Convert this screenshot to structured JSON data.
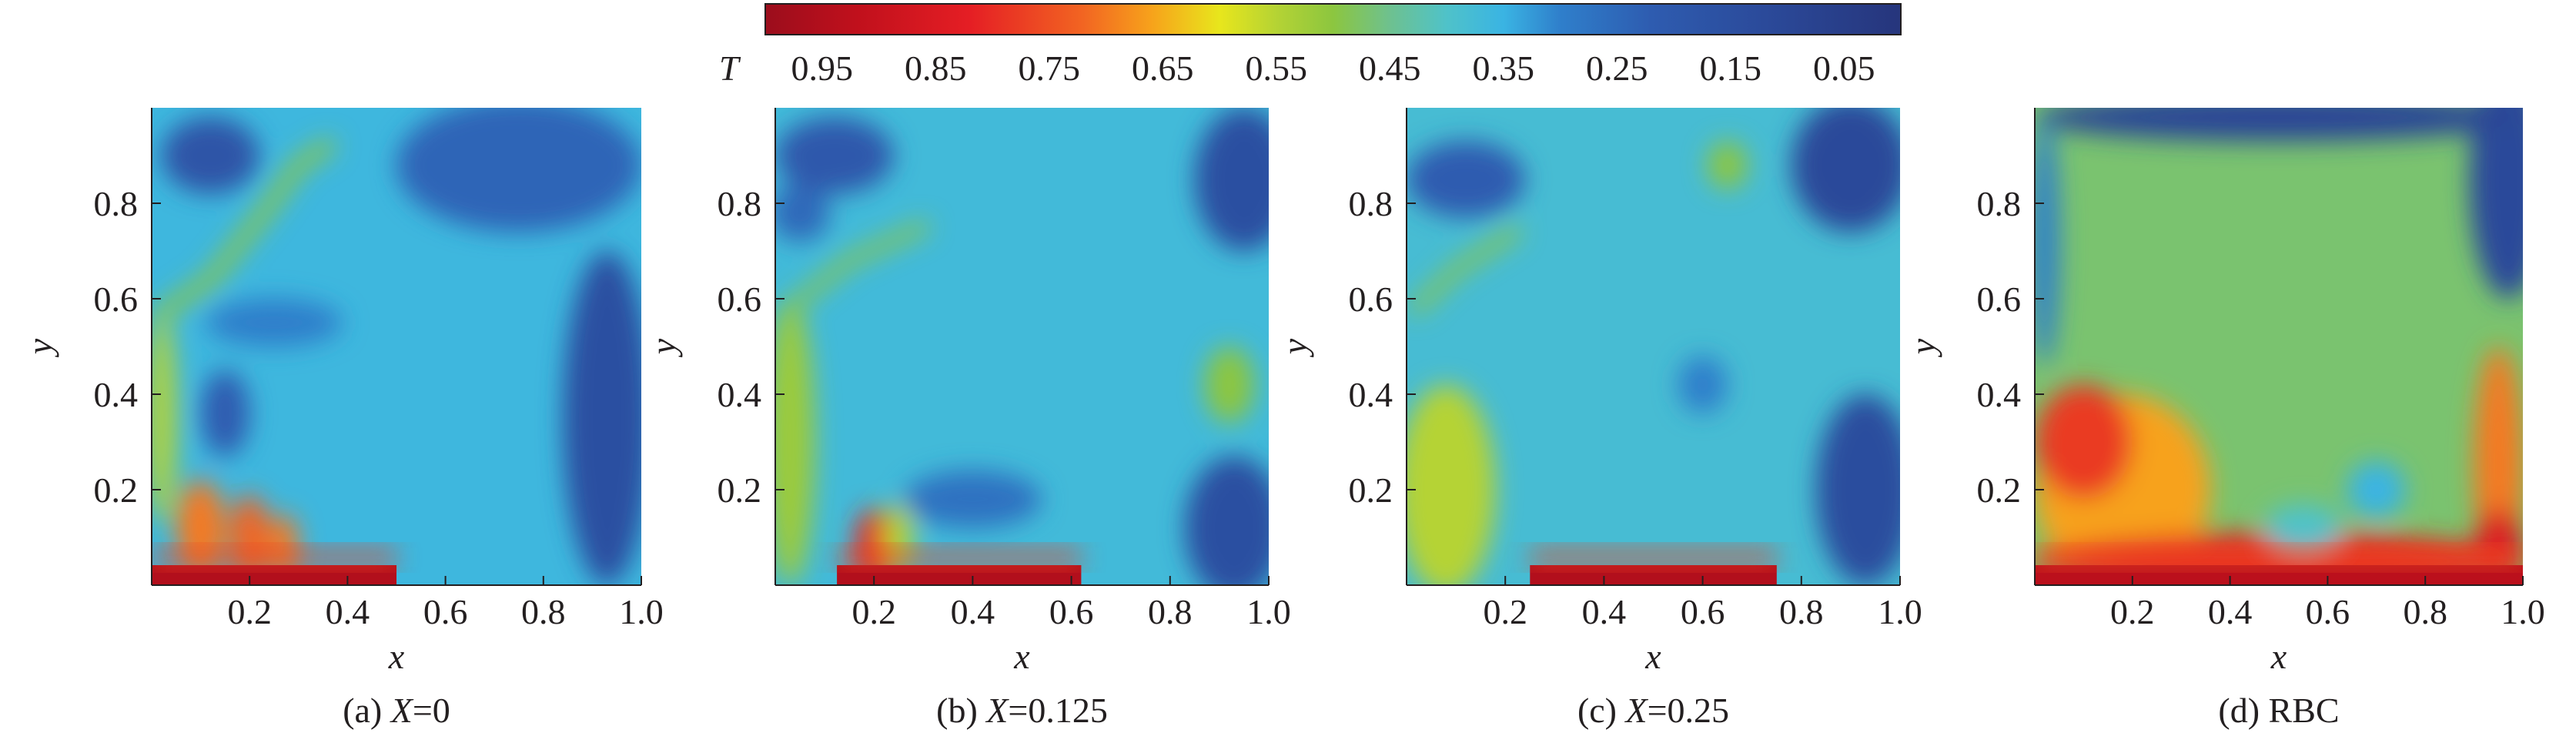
{
  "colorbar": {
    "symbol": "T",
    "ticks": [
      "0.95",
      "0.85",
      "0.75",
      "0.65",
      "0.55",
      "0.45",
      "0.35",
      "0.25",
      "0.15",
      "0.05"
    ],
    "range": [
      0.0,
      1.0
    ],
    "orientation": "decreasing-left-to-right",
    "stops": [
      {
        "t": 1.0,
        "color": "#9b0d1c"
      },
      {
        "t": 0.92,
        "color": "#c0101c"
      },
      {
        "t": 0.82,
        "color": "#e51e24"
      },
      {
        "t": 0.72,
        "color": "#f26522"
      },
      {
        "t": 0.66,
        "color": "#f7a21b"
      },
      {
        "t": 0.6,
        "color": "#e8e61c"
      },
      {
        "t": 0.55,
        "color": "#b5d334"
      },
      {
        "t": 0.5,
        "color": "#8cc63f"
      },
      {
        "t": 0.45,
        "color": "#6ec18f"
      },
      {
        "t": 0.4,
        "color": "#4fc2c9"
      },
      {
        "t": 0.35,
        "color": "#3ab4e3"
      },
      {
        "t": 0.3,
        "color": "#2f7fcb"
      },
      {
        "t": 0.22,
        "color": "#2e5cb0"
      },
      {
        "t": 0.12,
        "color": "#2b4a9a"
      },
      {
        "t": 0.0,
        "color": "#26357c"
      }
    ]
  },
  "chart_data": [
    {
      "type": "heatmap",
      "caption_prefix": "(a) ",
      "caption_var": "X",
      "caption_value": "=0",
      "xlabel": "x",
      "ylabel": "y",
      "xticks": [
        "0.2",
        "0.4",
        "0.6",
        "0.8",
        "1.0"
      ],
      "yticks": [
        "0.2",
        "0.4",
        "0.6",
        "0.8"
      ],
      "xlim": [
        0,
        1
      ],
      "ylim": [
        0,
        1
      ],
      "background_T": 0.36,
      "hot_segment": {
        "x": [
          0.0,
          0.5
        ],
        "y": 0.0,
        "T": 0.95
      },
      "features": [
        {
          "kind": "ellipse",
          "cx": 0.15,
          "cy": 0.36,
          "rx": 0.05,
          "ry": 0.09,
          "T": 0.22
        },
        {
          "kind": "ellipse",
          "cx": 0.25,
          "cy": 0.55,
          "rx": 0.14,
          "ry": 0.05,
          "T": 0.3
        },
        {
          "kind": "ellipse",
          "cx": 0.75,
          "cy": 0.88,
          "rx": 0.25,
          "ry": 0.14,
          "T": 0.24
        },
        {
          "kind": "ellipse",
          "cx": 0.93,
          "cy": 0.35,
          "rx": 0.09,
          "ry": 0.35,
          "T": 0.15
        },
        {
          "kind": "ellipse",
          "cx": 0.12,
          "cy": 0.9,
          "rx": 0.1,
          "ry": 0.08,
          "T": 0.18
        },
        {
          "kind": "path",
          "points": [
            [
              0.02,
              0.57
            ],
            [
              0.12,
              0.64
            ],
            [
              0.23,
              0.78
            ],
            [
              0.3,
              0.88
            ],
            [
              0.36,
              0.92
            ]
          ],
          "width": 0.03,
          "T": 0.5
        },
        {
          "kind": "ellipse",
          "cx": 0.02,
          "cy": 0.35,
          "rx": 0.03,
          "ry": 0.22,
          "T": 0.55
        },
        {
          "kind": "ellipse",
          "cx": 0.1,
          "cy": 0.12,
          "rx": 0.05,
          "ry": 0.1,
          "T": 0.7
        },
        {
          "kind": "ellipse",
          "cx": 0.2,
          "cy": 0.1,
          "rx": 0.04,
          "ry": 0.09,
          "T": 0.72
        },
        {
          "kind": "ellipse",
          "cx": 0.27,
          "cy": 0.08,
          "rx": 0.03,
          "ry": 0.07,
          "T": 0.7
        }
      ]
    },
    {
      "type": "heatmap",
      "caption_prefix": "(b) ",
      "caption_var": "X",
      "caption_value": "=0.125",
      "xlabel": "x",
      "ylabel": "y",
      "xticks": [
        "0.2",
        "0.4",
        "0.6",
        "0.8",
        "1.0"
      ],
      "yticks": [
        "0.2",
        "0.4",
        "0.6",
        "0.8"
      ],
      "xlim": [
        0,
        1
      ],
      "ylim": [
        0,
        1
      ],
      "background_T": 0.37,
      "hot_segment": {
        "x": [
          0.125,
          0.62
        ],
        "y": 0.0,
        "T": 0.95
      },
      "features": [
        {
          "kind": "ellipse",
          "cx": 0.05,
          "cy": 0.78,
          "rx": 0.06,
          "ry": 0.06,
          "T": 0.25
        },
        {
          "kind": "ellipse",
          "cx": 0.12,
          "cy": 0.9,
          "rx": 0.12,
          "ry": 0.08,
          "T": 0.2
        },
        {
          "kind": "ellipse",
          "cx": 0.95,
          "cy": 0.85,
          "rx": 0.1,
          "ry": 0.15,
          "T": 0.15
        },
        {
          "kind": "ellipse",
          "cx": 0.93,
          "cy": 0.12,
          "rx": 0.1,
          "ry": 0.15,
          "T": 0.15
        },
        {
          "kind": "ellipse",
          "cx": 0.4,
          "cy": 0.18,
          "rx": 0.14,
          "ry": 0.06,
          "T": 0.27
        },
        {
          "kind": "ellipse",
          "cx": 0.92,
          "cy": 0.42,
          "rx": 0.05,
          "ry": 0.08,
          "T": 0.5
        },
        {
          "kind": "ellipse",
          "cx": 0.03,
          "cy": 0.3,
          "rx": 0.05,
          "ry": 0.3,
          "T": 0.52
        },
        {
          "kind": "path",
          "points": [
            [
              0.03,
              0.58
            ],
            [
              0.15,
              0.68
            ],
            [
              0.3,
              0.75
            ]
          ],
          "width": 0.025,
          "T": 0.5
        },
        {
          "kind": "ellipse",
          "cx": 0.2,
          "cy": 0.08,
          "rx": 0.04,
          "ry": 0.08,
          "T": 0.8
        },
        {
          "kind": "ellipse",
          "cx": 0.25,
          "cy": 0.1,
          "rx": 0.03,
          "ry": 0.07,
          "T": 0.55
        }
      ]
    },
    {
      "type": "heatmap",
      "caption_prefix": "(c) ",
      "caption_var": "X",
      "caption_value": "=0.25",
      "xlabel": "x",
      "ylabel": "y",
      "xticks": [
        "0.2",
        "0.4",
        "0.6",
        "0.8",
        "1.0"
      ],
      "yticks": [
        "0.2",
        "0.4",
        "0.6",
        "0.8"
      ],
      "xlim": [
        0,
        1
      ],
      "ylim": [
        0,
        1
      ],
      "background_T": 0.38,
      "hot_segment": {
        "x": [
          0.25,
          0.75
        ],
        "y": 0.0,
        "T": 0.95
      },
      "features": [
        {
          "kind": "ellipse",
          "cx": 0.9,
          "cy": 0.88,
          "rx": 0.12,
          "ry": 0.14,
          "T": 0.12
        },
        {
          "kind": "ellipse",
          "cx": 0.93,
          "cy": 0.2,
          "rx": 0.1,
          "ry": 0.2,
          "T": 0.14
        },
        {
          "kind": "ellipse",
          "cx": 0.12,
          "cy": 0.85,
          "rx": 0.12,
          "ry": 0.08,
          "T": 0.22
        },
        {
          "kind": "ellipse",
          "cx": 0.08,
          "cy": 0.2,
          "rx": 0.1,
          "ry": 0.22,
          "T": 0.55
        },
        {
          "kind": "path",
          "points": [
            [
              0.02,
              0.58
            ],
            [
              0.1,
              0.66
            ],
            [
              0.22,
              0.74
            ]
          ],
          "width": 0.025,
          "T": 0.5
        },
        {
          "kind": "ellipse",
          "cx": 0.6,
          "cy": 0.42,
          "rx": 0.05,
          "ry": 0.06,
          "T": 0.3
        },
        {
          "kind": "ellipse",
          "cx": 0.65,
          "cy": 0.88,
          "rx": 0.04,
          "ry": 0.05,
          "T": 0.5
        }
      ]
    },
    {
      "type": "heatmap",
      "caption_prefix": "(d) ",
      "caption_var": "",
      "caption_value": "RBC",
      "xlabel": "x",
      "ylabel": "y",
      "xticks": [
        "0.2",
        "0.4",
        "0.6",
        "0.8",
        "1.0"
      ],
      "yticks": [
        "0.2",
        "0.4",
        "0.6",
        "0.8"
      ],
      "xlim": [
        0,
        1
      ],
      "ylim": [
        0,
        1
      ],
      "background_T": 0.47,
      "hot_segment": {
        "x": [
          0.0,
          1.0
        ],
        "y": 0.0,
        "T": 0.93
      },
      "features": [
        {
          "kind": "ellipse",
          "cx": 0.97,
          "cy": 0.85,
          "rx": 0.08,
          "ry": 0.25,
          "T": 0.12
        },
        {
          "kind": "ellipse",
          "cx": 0.5,
          "cy": 0.98,
          "rx": 0.5,
          "ry": 0.05,
          "T": 0.1
        },
        {
          "kind": "ellipse",
          "cx": 0.02,
          "cy": 0.72,
          "rx": 0.03,
          "ry": 0.26,
          "T": 0.3
        },
        {
          "kind": "ellipse",
          "cx": 0.18,
          "cy": 0.2,
          "rx": 0.18,
          "ry": 0.2,
          "T": 0.66
        },
        {
          "kind": "ellipse",
          "cx": 0.1,
          "cy": 0.3,
          "rx": 0.1,
          "ry": 0.12,
          "T": 0.78
        },
        {
          "kind": "ellipse",
          "cx": 0.95,
          "cy": 0.25,
          "rx": 0.05,
          "ry": 0.25,
          "T": 0.7
        },
        {
          "kind": "ellipse",
          "cx": 0.95,
          "cy": 0.08,
          "rx": 0.05,
          "ry": 0.08,
          "T": 0.85
        },
        {
          "kind": "ellipse",
          "cx": 0.5,
          "cy": 0.05,
          "rx": 0.5,
          "ry": 0.06,
          "T": 0.8
        },
        {
          "kind": "ellipse",
          "cx": 0.7,
          "cy": 0.2,
          "rx": 0.06,
          "ry": 0.06,
          "T": 0.35
        },
        {
          "kind": "ellipse",
          "cx": 0.55,
          "cy": 0.12,
          "rx": 0.08,
          "ry": 0.05,
          "T": 0.4
        }
      ]
    }
  ]
}
